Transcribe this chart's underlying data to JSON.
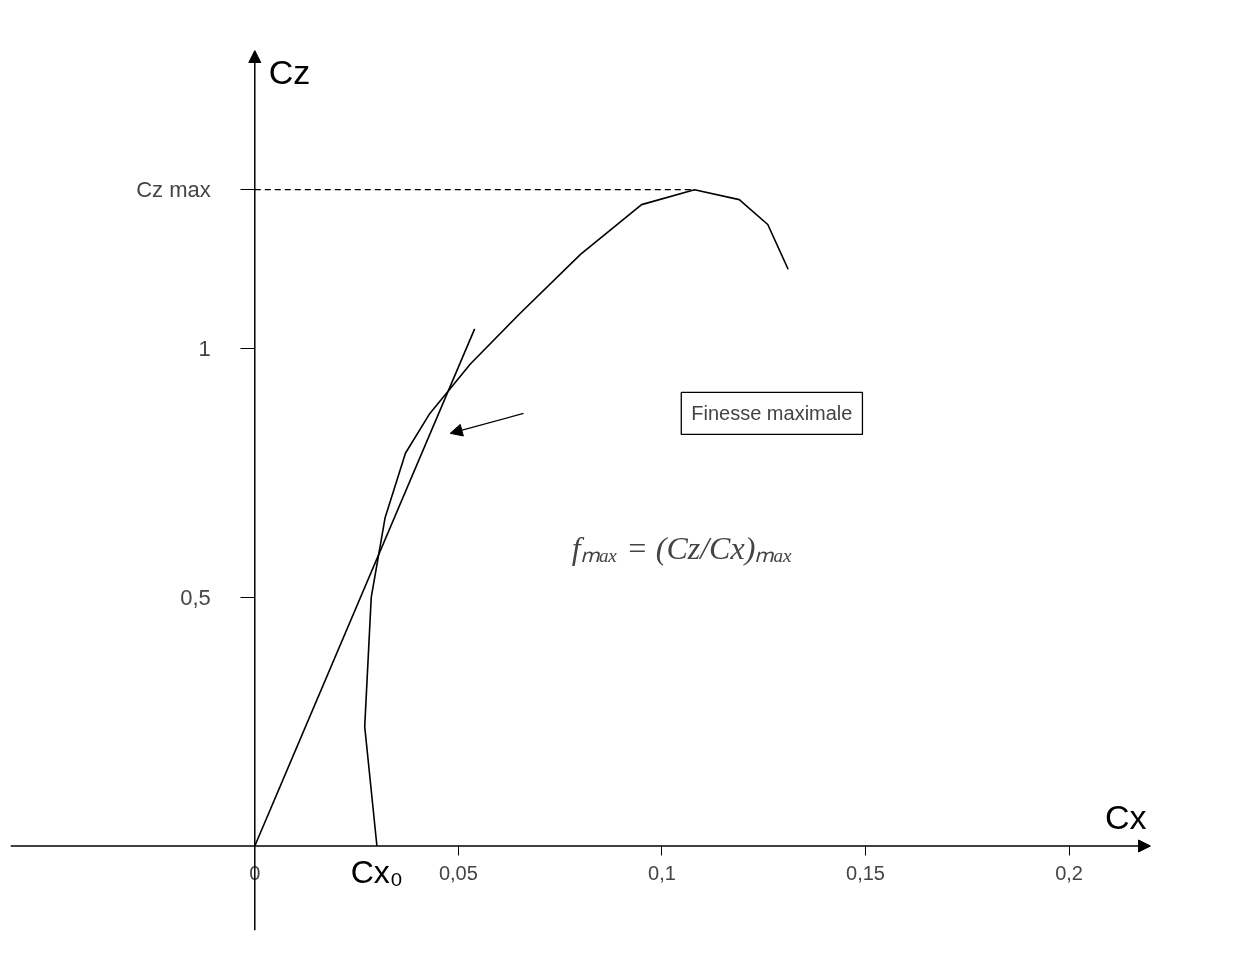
{
  "chart_data": {
    "type": "line",
    "xlabel": "Cx",
    "ylabel": "Cz",
    "xlim": [
      -0.06,
      0.22
    ],
    "ylim": [
      -0.17,
      1.6
    ],
    "xticks": [
      0,
      {
        "value": 0.05,
        "label": "0,05"
      },
      {
        "value": 0.1,
        "label": "0,1"
      },
      {
        "value": 0.15,
        "label": "0,15"
      },
      {
        "value": 0.2,
        "label": "0,2"
      }
    ],
    "yticks": [
      {
        "value": 0.5,
        "label": "0,5"
      },
      1,
      {
        "value": 1.32,
        "label": "Cz max"
      }
    ],
    "series": [
      {
        "color": "#000000",
        "x": [
          0.03,
          0.027,
          0.0286,
          0.032,
          0.037,
          0.043,
          0.053,
          0.065,
          0.08,
          0.095,
          0.108,
          0.119,
          0.126,
          0.131
        ],
        "values": [
          0,
          0.24,
          0.5,
          0.66,
          0.79,
          0.87,
          0.97,
          1.07,
          1.19,
          1.29,
          1.32,
          1.3,
          1.25,
          1.16
        ]
      },
      {
        "color": "#000000",
        "x": [
          0,
          0.054
        ],
        "values": [
          0,
          1.04
        ]
      }
    ],
    "ref_lines": [
      {
        "axis": "y",
        "value": 1.32,
        "line_style": "dashed",
        "color": "#000000"
      }
    ],
    "annotations": [
      "Finesse maximale",
      {
        "text": "Cx₀",
        "x": 0.03,
        "y": 0
      },
      "fₘₐₓ = (Cz/Cx)ₘₐₓ"
    ],
    "grid": false,
    "marker": "none",
    "line_style": "solid"
  }
}
